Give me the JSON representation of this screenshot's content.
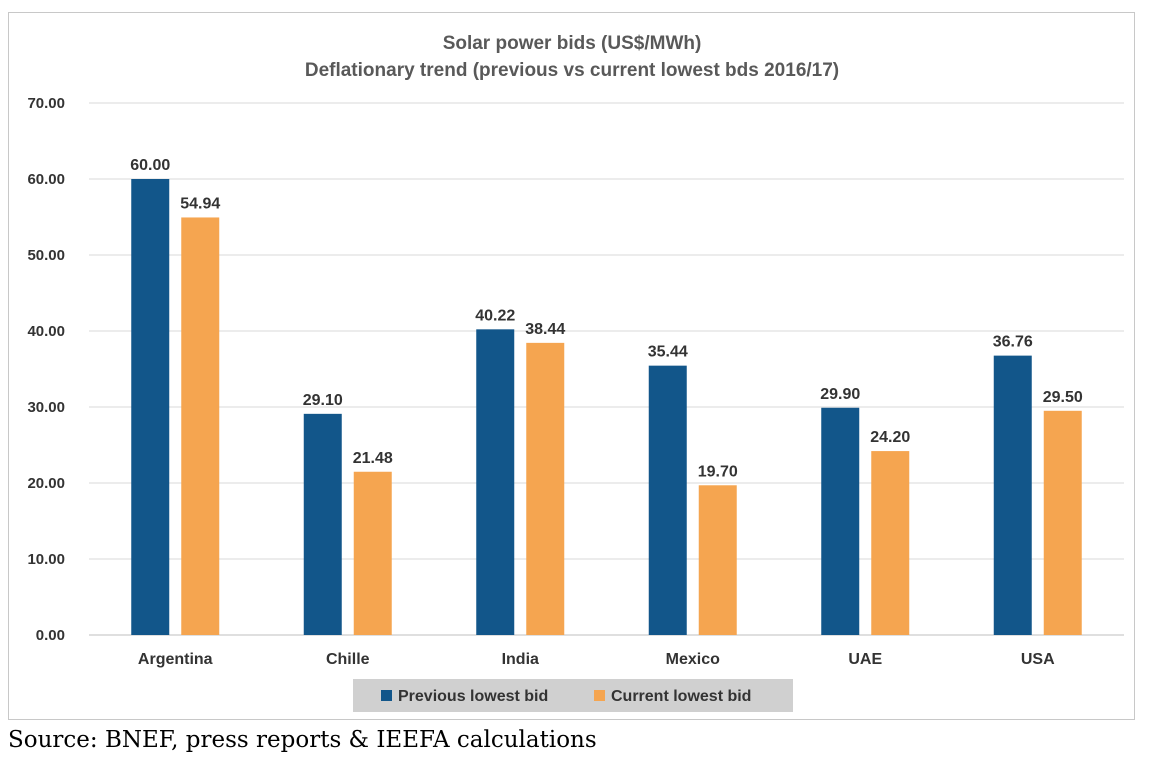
{
  "chart_data": {
    "type": "bar",
    "title": "Solar power bids (US$/MWh)",
    "subtitle": "Deflationary trend (previous vs current lowest bds 2016/17)",
    "categories": [
      "Argentina",
      "Chille",
      "India",
      "Mexico",
      "UAE",
      "USA"
    ],
    "series": [
      {
        "name": "Previous lowest bid",
        "color": "#12568a",
        "values": [
          60.0,
          29.1,
          40.22,
          35.44,
          29.9,
          36.76
        ],
        "labels": [
          "60.00",
          "29.10",
          "40.22",
          "35.44",
          "29.90",
          "36.76"
        ]
      },
      {
        "name": "Current lowest bid",
        "color": "#f5a550",
        "values": [
          54.94,
          21.48,
          38.44,
          19.7,
          24.2,
          29.5
        ],
        "labels": [
          "54.94",
          "21.48",
          "38.44",
          "19.70",
          "24.20",
          "29.50"
        ]
      }
    ],
    "ylim": [
      0,
      70
    ],
    "yticks": [
      "0.00",
      "10.00",
      "20.00",
      "30.00",
      "40.00",
      "50.00",
      "60.00",
      "70.00"
    ],
    "ytick_values": [
      0,
      10,
      20,
      30,
      40,
      50,
      60,
      70
    ],
    "grid": true,
    "legend_position": "bottom",
    "legend_background": "#d0d0d0",
    "xlabel": "",
    "ylabel": ""
  },
  "source_note": "Source: BNEF, press reports & IEEFA calculations"
}
